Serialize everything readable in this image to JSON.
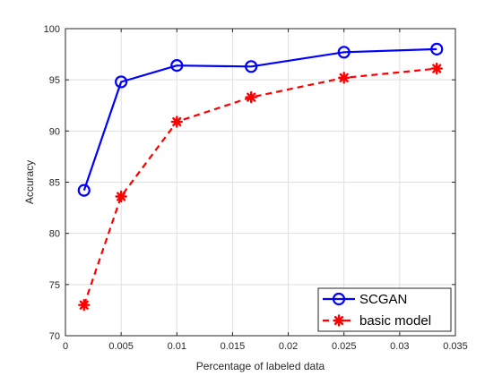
{
  "chart_data": {
    "type": "line",
    "xlabel": "Percentage of labeled data",
    "ylabel": "Accuracy",
    "xlim": [
      0,
      0.035
    ],
    "ylim": [
      70,
      100
    ],
    "xticks": [
      0,
      0.005,
      0.01,
      0.015,
      0.02,
      0.025,
      0.03,
      0.035
    ],
    "xtick_labels": [
      "0",
      "0.005",
      "0.01",
      "0.015",
      "0.02",
      "0.025",
      "0.03",
      "0.035"
    ],
    "yticks": [
      70,
      75,
      80,
      85,
      90,
      95,
      100
    ],
    "ytick_labels": [
      "70",
      "75",
      "80",
      "85",
      "90",
      "95",
      "100"
    ],
    "grid": true,
    "legend_position": "bottom-right",
    "x": [
      0.00167,
      0.005,
      0.01,
      0.01667,
      0.025,
      0.03333
    ],
    "series": [
      {
        "name": "SCGAN",
        "values": [
          84.2,
          94.8,
          96.4,
          96.3,
          97.7,
          98.0
        ],
        "color": "#0000ff",
        "marker": "circle",
        "line": "solid"
      },
      {
        "name": "basic model",
        "values": [
          73.0,
          83.6,
          90.9,
          93.3,
          95.2,
          96.1
        ],
        "color": "#ff0000",
        "marker": "asterisk",
        "line": "dashed"
      }
    ]
  }
}
